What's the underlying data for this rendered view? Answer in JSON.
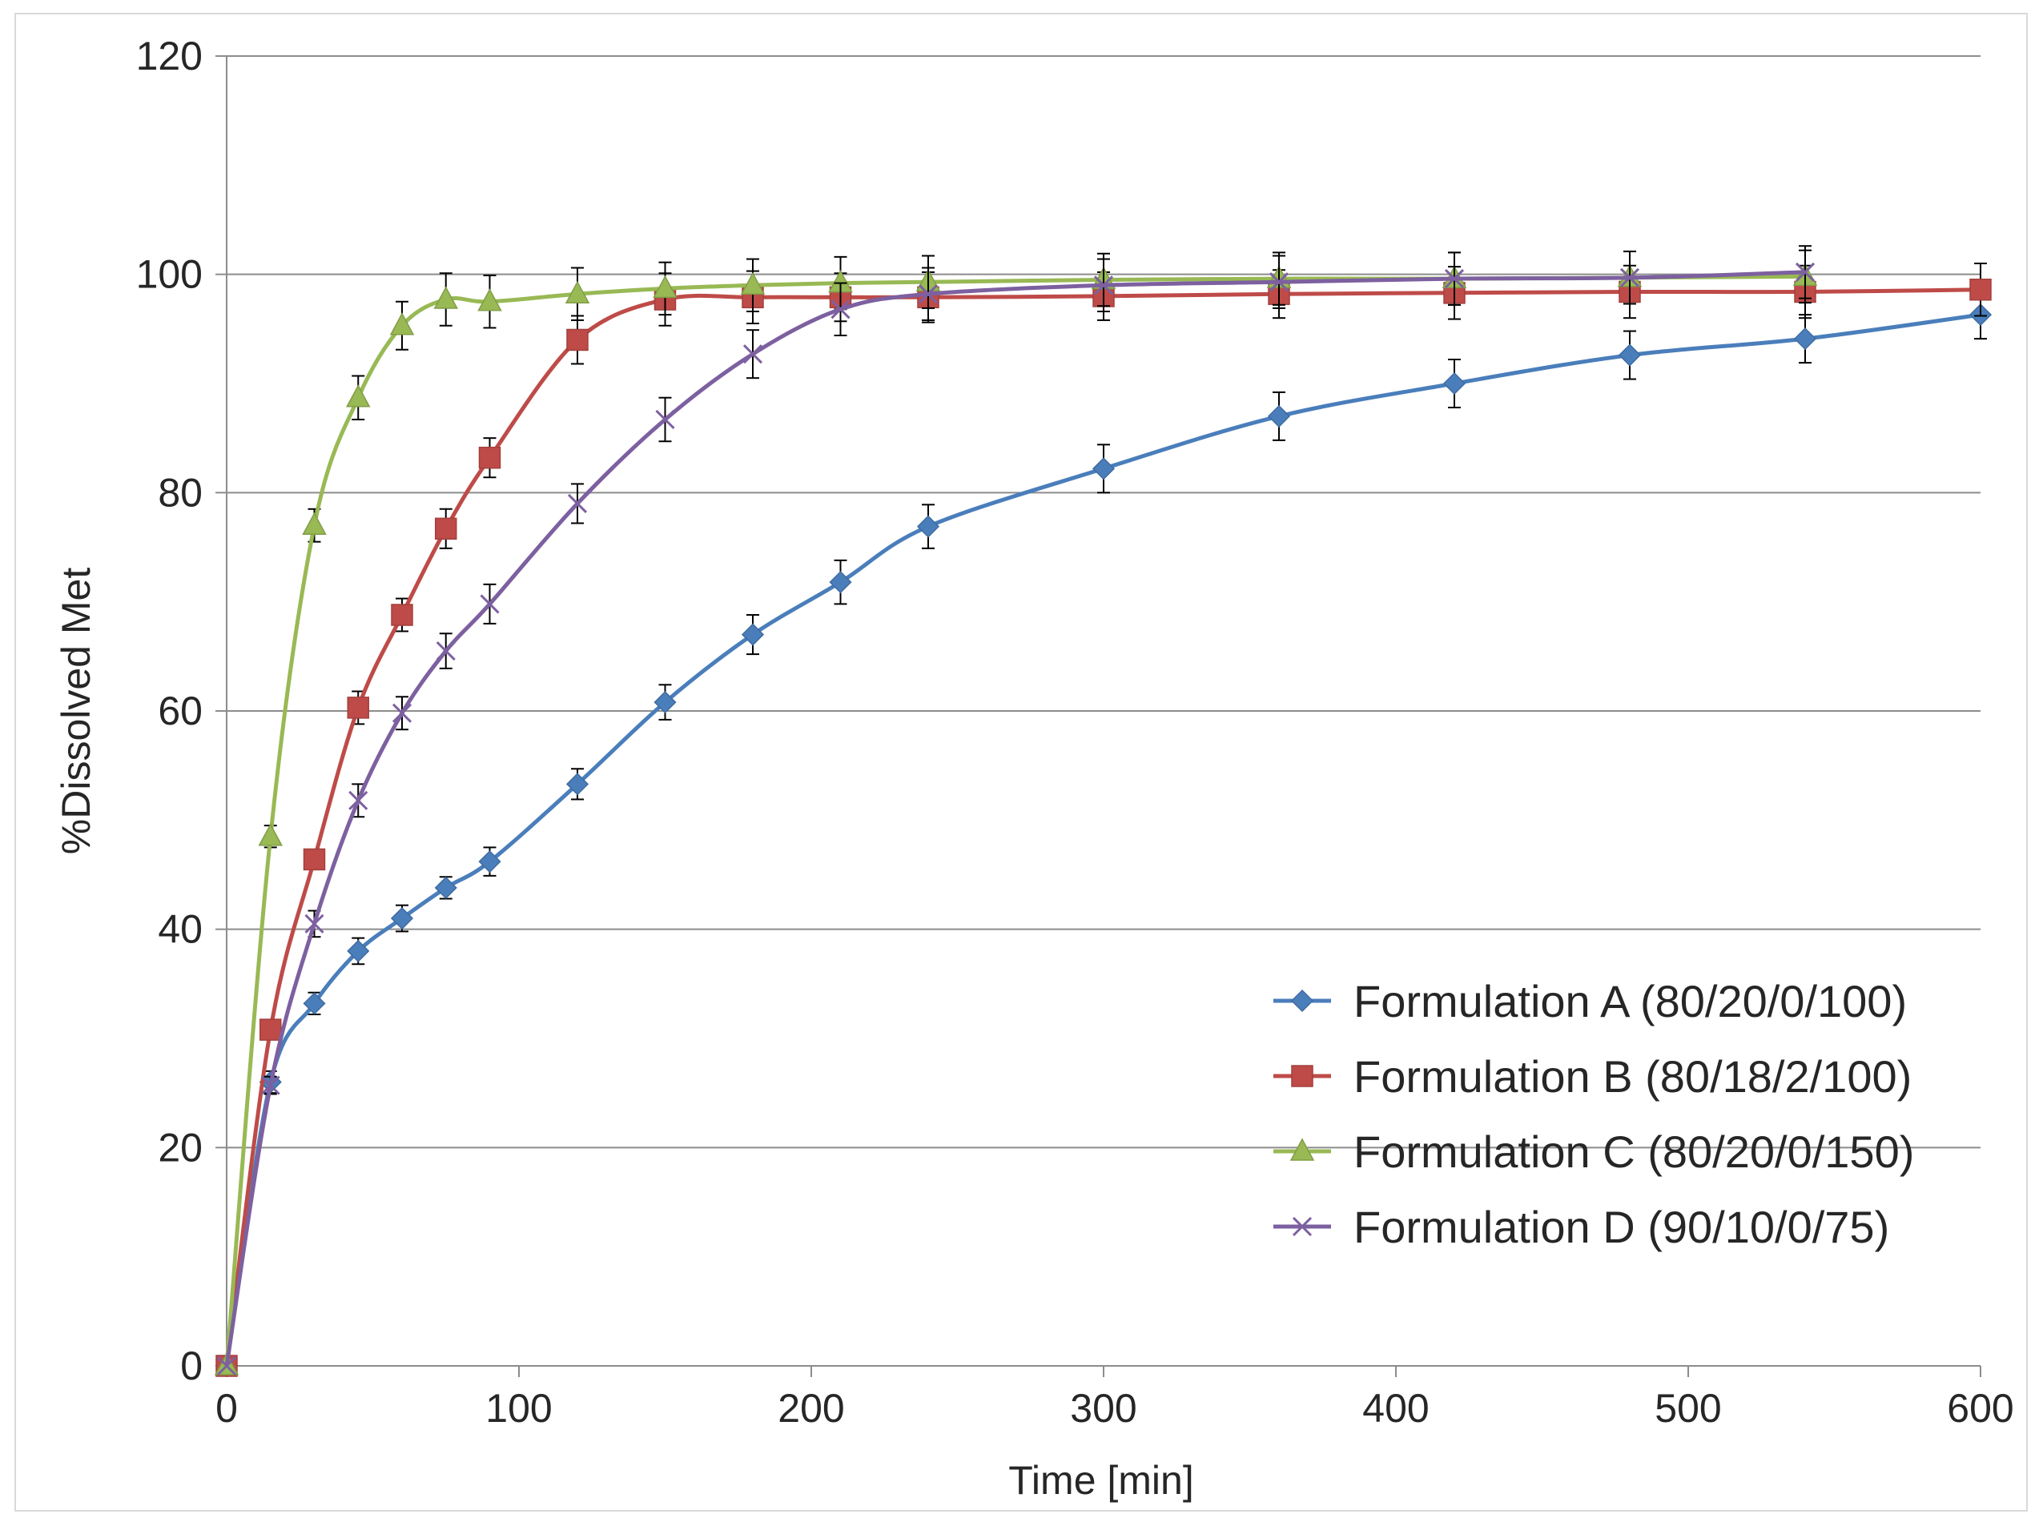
{
  "chart_data": {
    "type": "line",
    "title": "",
    "xlabel": "Time [min]",
    "ylabel": "%Dissolved Met",
    "xlim": [
      0,
      600
    ],
    "ylim": [
      0,
      120
    ],
    "xticks": [
      0,
      100,
      200,
      300,
      400,
      500,
      600
    ],
    "yticks": [
      0,
      20,
      40,
      60,
      80,
      100,
      120
    ],
    "grid": "horizontal",
    "legend_position": "bottom-right",
    "series": [
      {
        "name": "Formulation A (80/20/0/100)",
        "color": "#4a7ebb",
        "marker": "diamond",
        "x": [
          0,
          15,
          30,
          45,
          60,
          75,
          90,
          120,
          150,
          180,
          210,
          240,
          300,
          360,
          420,
          480,
          540,
          600
        ],
        "y": [
          0,
          26,
          33.2,
          38,
          41,
          43.8,
          46.2,
          53.3,
          60.8,
          67,
          71.8,
          76.9,
          82.2,
          87,
          90,
          92.6,
          94.1,
          96.3
        ],
        "err": [
          0,
          1,
          1,
          1.2,
          1.2,
          1,
          1.3,
          1.4,
          1.6,
          1.8,
          2,
          2,
          2.2,
          2.2,
          2.2,
          2.2,
          2.2,
          2.2
        ]
      },
      {
        "name": "Formulation B (80/18/2/100)",
        "color": "#be4b48",
        "marker": "square",
        "x": [
          0,
          15,
          30,
          45,
          60,
          75,
          90,
          120,
          150,
          180,
          210,
          240,
          300,
          360,
          420,
          480,
          540,
          600
        ],
        "y": [
          0,
          30.8,
          46.4,
          60.3,
          68.8,
          76.7,
          83.2,
          94,
          97.7,
          97.9,
          97.9,
          97.9,
          98,
          98.2,
          98.3,
          98.4,
          98.4,
          98.6
        ],
        "err": [
          0,
          0.8,
          0.8,
          1.5,
          1.5,
          1.8,
          1.8,
          2.2,
          2.4,
          2.4,
          2.2,
          2.3,
          2.2,
          2.2,
          2.4,
          2.4,
          2.4,
          2.4
        ]
      },
      {
        "name": "Formulation C (80/20/0/150)",
        "color": "#98b954",
        "marker": "triangle",
        "x": [
          0,
          15,
          30,
          45,
          60,
          75,
          90,
          120,
          150,
          180,
          210,
          240,
          300,
          360,
          420,
          480,
          540
        ],
        "y": [
          0,
          48.5,
          77,
          88.7,
          95.3,
          97.7,
          97.5,
          98.2,
          98.7,
          99,
          99.2,
          99.3,
          99.5,
          99.6,
          99.6,
          99.7,
          99.8
        ],
        "err": [
          0,
          1,
          1.5,
          2,
          2.2,
          2.4,
          2.4,
          2.4,
          2.4,
          2.4,
          2.4,
          2.4,
          2.4,
          2.4,
          2.4,
          2.4,
          2.4
        ]
      },
      {
        "name": "Formulation D (90/10/0/75)",
        "color": "#7d60a0",
        "marker": "x",
        "x": [
          0,
          15,
          30,
          45,
          60,
          75,
          90,
          120,
          150,
          180,
          210,
          240,
          300,
          360,
          420,
          480,
          540
        ],
        "y": [
          0,
          25.7,
          40.5,
          51.8,
          59.8,
          65.5,
          69.8,
          79,
          86.7,
          92.7,
          96.8,
          98.2,
          99,
          99.3,
          99.6,
          99.7,
          100.2
        ],
        "err": [
          0,
          0.8,
          1.2,
          1.5,
          1.5,
          1.6,
          1.8,
          1.8,
          2,
          2.2,
          2.4,
          2.4,
          2.4,
          2.4,
          2.4,
          2.4,
          2.4
        ]
      }
    ]
  }
}
